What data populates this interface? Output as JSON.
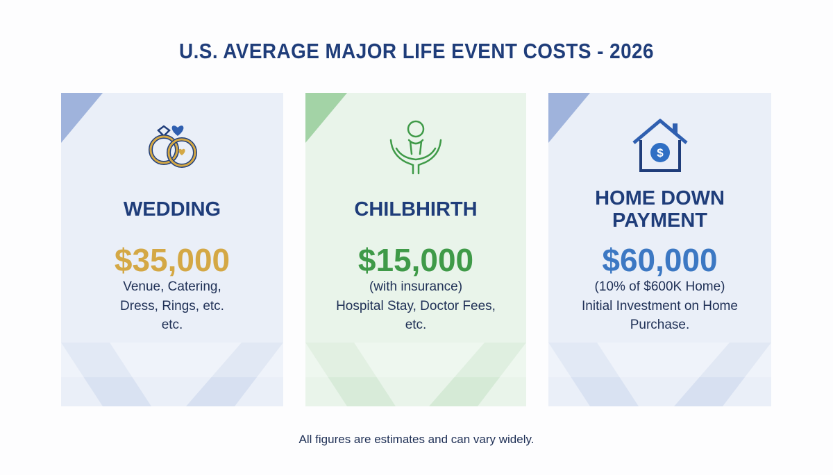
{
  "header": {
    "title": "U.S. AVERAGE MAJOR LIFE EVENT COSTS - 2026"
  },
  "cards": [
    {
      "label": "WEDDING",
      "amount": "$35,000",
      "details": [
        "Venue, Catering,",
        "Dress, Rings, etc.",
        "etc."
      ]
    },
    {
      "label": "CHILBHIRTH",
      "amount": "$15,000",
      "details": [
        "(with insurance)",
        "Hospital Stay, Doctor Fees,",
        "etc."
      ]
    },
    {
      "label": "HOME DOWN PAYMENT",
      "amount": "$60,000",
      "details": [
        "(10% of $600K Home)",
        "Initial Investment on Home",
        "Purchase."
      ]
    }
  ],
  "footer": {
    "note": "All figures are estimates and can vary widely."
  }
}
